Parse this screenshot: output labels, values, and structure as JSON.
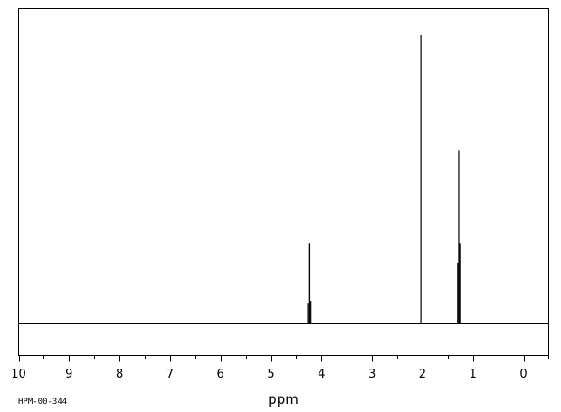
{
  "chart_data": {
    "type": "line",
    "title": "",
    "xlabel": "ppm",
    "ylabel": "",
    "xlim": [
      10,
      -0.55
    ],
    "x_reversed": true,
    "ylim": [
      0,
      1.0
    ],
    "grid": false,
    "x_ticks": [
      10,
      9,
      8,
      7,
      6,
      5,
      4,
      3,
      2,
      1,
      0
    ],
    "x_tick_labels": [
      "10",
      "9",
      "8",
      "7",
      "6",
      "5",
      "4",
      "3",
      "2",
      "1",
      "0"
    ],
    "series": [
      {
        "peaks": [
          {
            "ppm": 4.273,
            "height": 0.07
          },
          {
            "ppm": 4.251,
            "height": 0.28
          },
          {
            "ppm": 4.23,
            "height": 0.28
          },
          {
            "ppm": 4.208,
            "height": 0.08
          },
          {
            "ppm": 2.032,
            "height": 1.0
          },
          {
            "ppm": 1.303,
            "height": 0.21
          },
          {
            "ppm": 1.282,
            "height": 0.6
          },
          {
            "ppm": 1.261,
            "height": 0.28
          }
        ]
      }
    ],
    "annotations": [
      "HPM-00-344"
    ]
  },
  "style": {
    "line_color": "#000000",
    "background": "#ffffff"
  }
}
